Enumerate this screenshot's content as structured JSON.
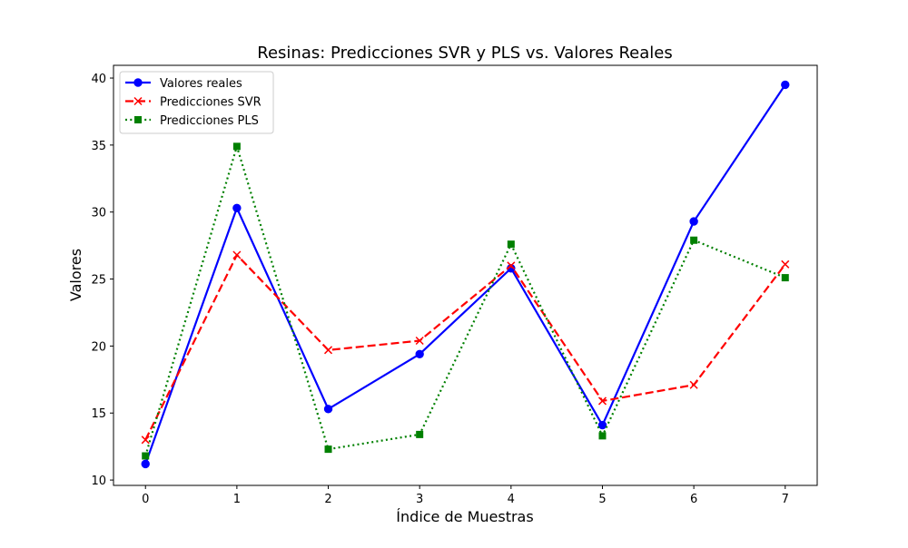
{
  "chart_data": {
    "type": "line",
    "title": "Resinas: Predicciones SVR y PLS vs. Valores Reales",
    "xlabel": "Índice de Muestras",
    "ylabel": "Valores",
    "x": [
      0,
      1,
      2,
      3,
      4,
      5,
      6,
      7
    ],
    "xlim": [
      -0.35,
      7.35
    ],
    "ylim": [
      9.6,
      40.95
    ],
    "xticks": [
      0,
      1,
      2,
      3,
      4,
      5,
      6,
      7
    ],
    "yticks": [
      10,
      15,
      20,
      25,
      30,
      35,
      40
    ],
    "grid": false,
    "legend_position": "upper-left",
    "series": [
      {
        "name": "Valores reales",
        "values": [
          11.2,
          30.3,
          15.3,
          19.4,
          25.8,
          14.1,
          29.3,
          39.5
        ],
        "color": "#0000ff",
        "dash": "solid",
        "marker": "circle"
      },
      {
        "name": "Predicciones SVR",
        "values": [
          13.0,
          26.8,
          19.7,
          20.4,
          26.0,
          15.9,
          17.1,
          26.1
        ],
        "color": "#ff0000",
        "dash": "dashed",
        "marker": "x"
      },
      {
        "name": "Predicciones PLS",
        "values": [
          11.8,
          34.9,
          12.3,
          13.4,
          27.6,
          13.3,
          27.9,
          25.1
        ],
        "color": "#008000",
        "dash": "dotted",
        "marker": "square"
      }
    ]
  }
}
